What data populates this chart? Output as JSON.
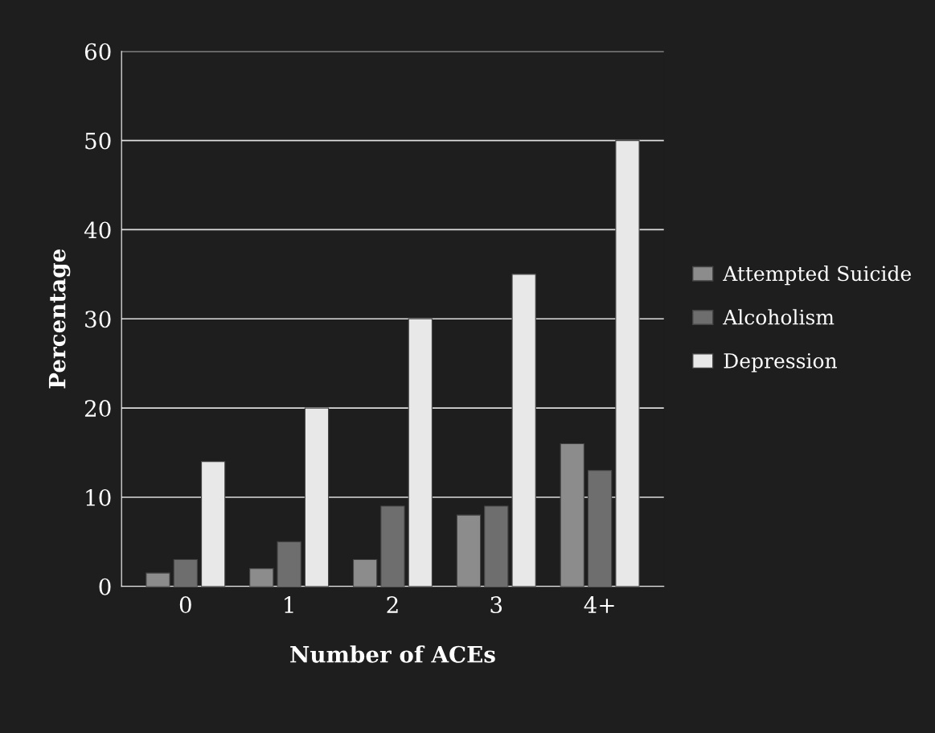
{
  "chart_data": {
    "type": "bar",
    "xlabel": "Number of ACEs",
    "ylabel": "Percentage",
    "categories": [
      "0",
      "1",
      "2",
      "3",
      "4+"
    ],
    "series": [
      {
        "name": "Attempted Suicide",
        "color": "#8c8c8c",
        "values": [
          1.5,
          2,
          3,
          8,
          16
        ]
      },
      {
        "name": "Alcoholism",
        "color": "#6e6e6e",
        "values": [
          3,
          5,
          9,
          9,
          13
        ]
      },
      {
        "name": "Depression",
        "color": "#e8e8e8",
        "values": [
          14,
          20,
          30,
          35,
          50
        ]
      }
    ],
    "ylim": [
      0,
      60
    ],
    "yticks": [
      0,
      10,
      20,
      30,
      40,
      50,
      60
    ],
    "grid": "y",
    "legend": "right"
  }
}
